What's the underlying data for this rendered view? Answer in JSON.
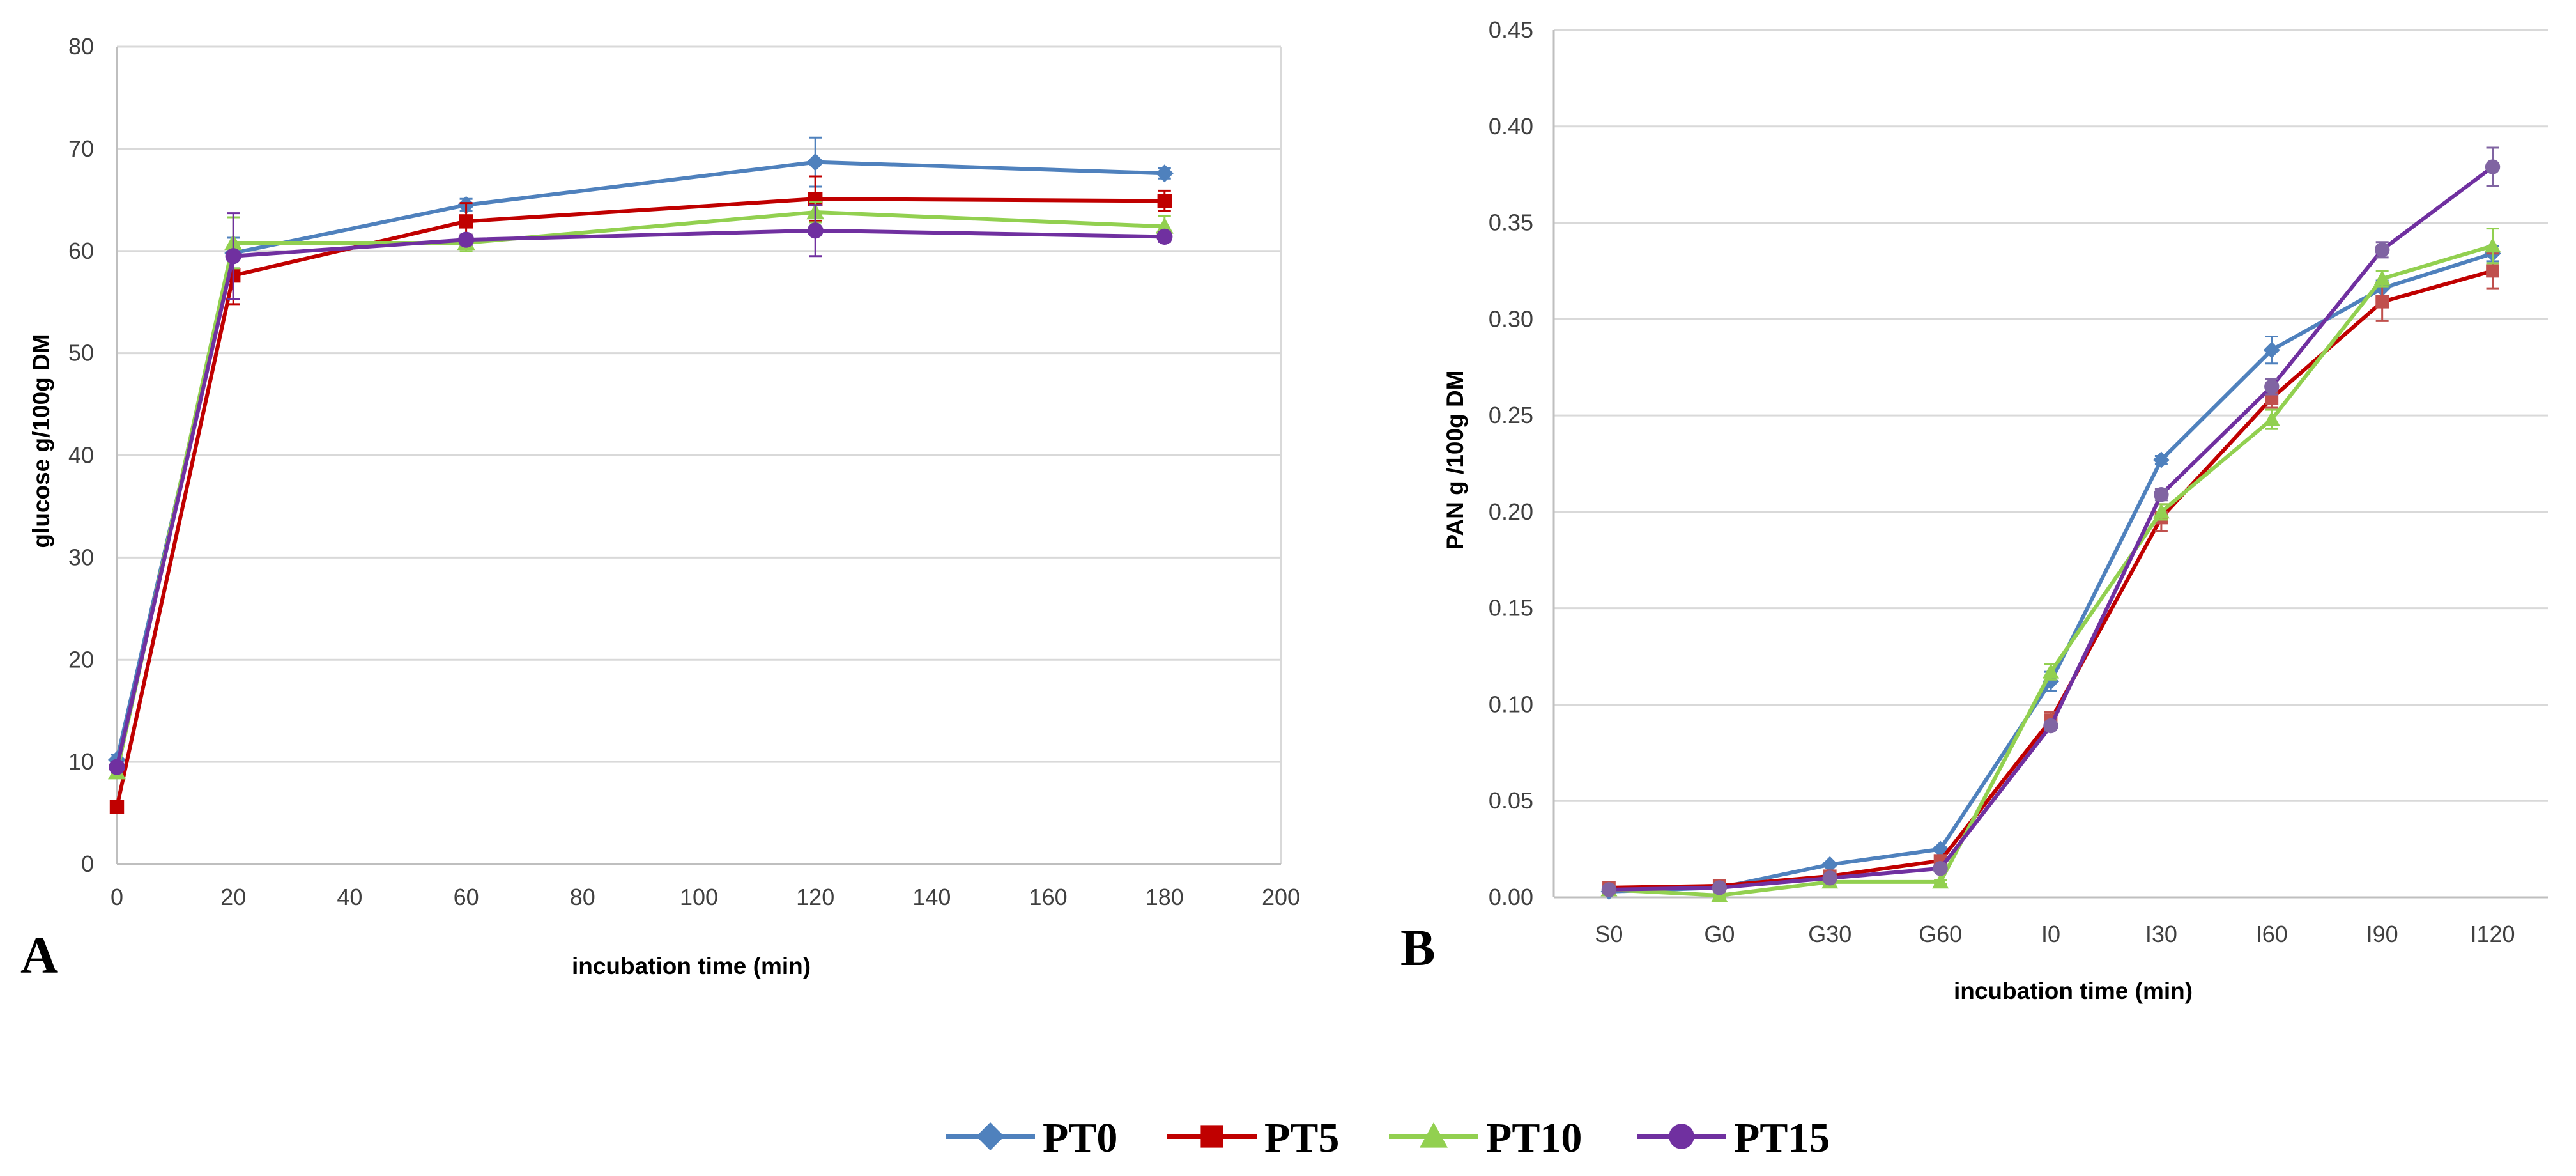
{
  "colors": {
    "PT0": "#4F81BD",
    "PT5": "#C00000",
    "PT10": "#92D050",
    "PT15": "#7030A0",
    "PT5_light": "#C0504D",
    "PT15_light": "#8064A2"
  },
  "legend": [
    {
      "name": "PT0",
      "marker": "diamond"
    },
    {
      "name": "PT5",
      "marker": "square"
    },
    {
      "name": "PT10",
      "marker": "triangle"
    },
    {
      "name": "PT15",
      "marker": "circle"
    }
  ],
  "chart_data": [
    {
      "panel": "A",
      "type": "line",
      "xlabel": "incubation time (min)",
      "ylabel": "glucose g/100g DM",
      "xlim": [
        0,
        200
      ],
      "ylim": [
        0,
        80
      ],
      "xticks": [
        0,
        20,
        40,
        60,
        80,
        100,
        120,
        140,
        160,
        180,
        200
      ],
      "yticks": [
        0,
        10,
        20,
        30,
        40,
        50,
        60,
        70,
        80
      ],
      "x": [
        0,
        20,
        60,
        120,
        180
      ],
      "series": [
        {
          "name": "PT0",
          "values": [
            10.2,
            59.8,
            64.5,
            68.7,
            67.6
          ],
          "err": [
            0.5,
            1.5,
            0.6,
            2.4,
            0.5
          ]
        },
        {
          "name": "PT5",
          "values": [
            5.6,
            57.6,
            62.9,
            65.1,
            64.9
          ],
          "err": [
            0.5,
            2.8,
            1.8,
            2.2,
            1.0
          ]
        },
        {
          "name": "PT10",
          "values": [
            9.0,
            60.8,
            60.8,
            63.8,
            62.4
          ],
          "err": [
            0.5,
            2.5,
            0.8,
            1.0,
            1.0
          ]
        },
        {
          "name": "PT15",
          "values": [
            9.5,
            59.5,
            61.1,
            62.0,
            61.4
          ],
          "err": [
            0.5,
            4.2,
            0.5,
            2.5,
            0.5
          ]
        }
      ]
    },
    {
      "panel": "B",
      "type": "line",
      "xlabel": "incubation time (min)",
      "ylabel": "PAN g /100g DM",
      "categories": [
        "S0",
        "G0",
        "G30",
        "G60",
        "I0",
        "I30",
        "I60",
        "I90",
        "I120"
      ],
      "ylim": [
        0,
        0.45
      ],
      "yticks": [
        "0.00",
        "0.05",
        "0.10",
        "0.15",
        "0.20",
        "0.25",
        "0.30",
        "0.35",
        "0.40",
        "0.45"
      ],
      "series": [
        {
          "name": "PT0",
          "values": [
            0.003,
            0.005,
            0.017,
            0.025,
            0.112,
            0.227,
            0.284,
            0.316,
            0.334
          ],
          "err": [
            0.001,
            0.001,
            0.001,
            0.001,
            0.005,
            0.002,
            0.007,
            0.004,
            0.004
          ]
        },
        {
          "name": "PT5",
          "values": [
            0.005,
            0.006,
            0.011,
            0.019,
            0.092,
            0.197,
            0.259,
            0.309,
            0.325
          ],
          "err": [
            0.001,
            0.001,
            0.001,
            0.001,
            0.004,
            0.007,
            0.005,
            0.01,
            0.009
          ]
        },
        {
          "name": "PT10",
          "values": [
            0.004,
            0.001,
            0.008,
            0.008,
            0.117,
            0.2,
            0.248,
            0.321,
            0.338
          ],
          "err": [
            0.001,
            0.001,
            0.001,
            0.001,
            0.004,
            0.004,
            0.005,
            0.004,
            0.009
          ]
        },
        {
          "name": "PT15",
          "values": [
            0.004,
            0.005,
            0.01,
            0.015,
            0.089,
            0.209,
            0.265,
            0.336,
            0.379
          ],
          "err": [
            0.001,
            0.001,
            0.001,
            0.001,
            0.002,
            0.003,
            0.004,
            0.004,
            0.01
          ]
        }
      ]
    }
  ]
}
